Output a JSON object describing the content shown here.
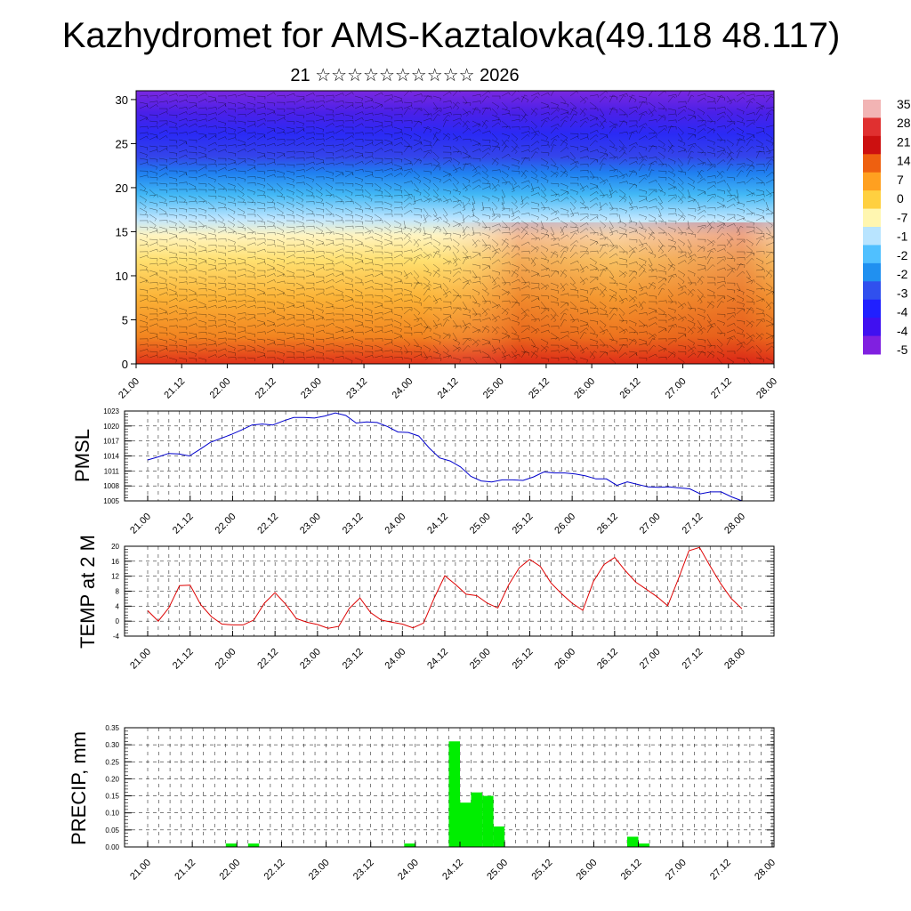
{
  "header": {
    "title": "Kazhydromet for AMS-Kaztalovka(49.118 48.117)",
    "subtitle": "21 ☆☆☆☆☆☆☆☆☆☆ 2026"
  },
  "colors": {
    "pmsl_line": "#0000cc",
    "temp_line": "#dd0000",
    "precip_bar": "#00ee00",
    "grid": "#000000"
  },
  "time_ticks": [
    "21.00",
    "21.12",
    "22.00",
    "22.12",
    "23.00",
    "23.12",
    "24.00",
    "24.12",
    "25.00",
    "25.12",
    "26.00",
    "26.12",
    "27.00",
    "27.12",
    "28.00"
  ],
  "chart_data": [
    {
      "type": "heatmap",
      "id": "cross-section",
      "title": "",
      "x": [
        "21.00",
        "21.12",
        "22.00",
        "22.12",
        "23.00",
        "23.12",
        "24.00",
        "24.12",
        "25.00",
        "25.12",
        "26.00",
        "26.12",
        "27.00",
        "27.12",
        "28.00"
      ],
      "yticks": [
        "0",
        "5",
        "10",
        "15",
        "20",
        "25",
        "30"
      ],
      "ylim": [
        0,
        31
      ],
      "colorbar_labels": [
        "35",
        "28",
        "21",
        "14",
        "7",
        "0",
        "-7",
        "-1",
        "-2",
        "-2",
        "-3",
        "-4",
        "-4",
        "-5"
      ],
      "colorbar_colors": [
        "#f2b4b4",
        "#e03030",
        "#cc1010",
        "#ee6010",
        "#ffa020",
        "#ffd040",
        "#fff6b0",
        "#b8e4ff",
        "#50c0ff",
        "#2090f0",
        "#3050ee",
        "#2020ff",
        "#4010f0",
        "#8020e0"
      ]
    },
    {
      "type": "line",
      "id": "pmsl",
      "ylabel": "PMSL",
      "ylim": [
        1005,
        1023
      ],
      "yticks": [
        "1005",
        "1008",
        "1011",
        "1014",
        "1017",
        "1020",
        "1023"
      ],
      "values": [
        1013.2,
        1013.8,
        1014.5,
        1014.4,
        1014,
        1015.3,
        1016.7,
        1017.5,
        1018.3,
        1019.2,
        1020.2,
        1020.4,
        1020.2,
        1021,
        1021.7,
        1021.7,
        1021.6,
        1022,
        1022.6,
        1022.1,
        1020.6,
        1020.8,
        1020.7,
        1019.9,
        1018.8,
        1018.7,
        1018,
        1015.6,
        1013.6,
        1013,
        1011.8,
        1009.9,
        1009,
        1008.8,
        1009.2,
        1009.2,
        1009.1,
        1009.8,
        1010.8,
        1010.6,
        1010.6,
        1010.4,
        1010,
        1009.4,
        1009.4,
        1008.1,
        1008.8,
        1008.3,
        1007.8,
        1007.7,
        1007.8,
        1007.6,
        1007.4,
        1006.4,
        1006.8,
        1006.8,
        1005.8,
        1005
      ]
    },
    {
      "type": "line",
      "id": "temp-2m",
      "ylabel": "TEMP at 2 M",
      "ylim": [
        -4,
        20
      ],
      "yticks": [
        "-4",
        "0",
        "4",
        "8",
        "12",
        "16",
        "20"
      ],
      "values": [
        2.8,
        0,
        3.6,
        9.5,
        9.6,
        4.4,
        1.2,
        -0.8,
        -1,
        -1,
        0.3,
        4.8,
        7.6,
        4.5,
        0.7,
        -0.3,
        -0.9,
        -1.9,
        -1.4,
        3.4,
        6.2,
        2.3,
        0.3,
        -0.3,
        -0.8,
        -1.8,
        -0.5,
        6.2,
        12.1,
        9.8,
        7.2,
        6.8,
        4.8,
        3.5,
        9.6,
        14.2,
        16.5,
        14.6,
        10.2,
        7.3,
        4.8,
        2.9,
        10.6,
        15.1,
        17,
        13.5,
        10.4,
        8.5,
        6.5,
        4.1,
        11.2,
        18.8,
        19.7,
        14.7,
        10,
        6,
        3.3
      ]
    },
    {
      "type": "bar",
      "id": "precip",
      "ylabel": "PRECIP, mm",
      "ylim": [
        0,
        0.35
      ],
      "yticks": [
        "0.00",
        "0.05",
        "0.10",
        "0.15",
        "0.20",
        "0.25",
        "0.30",
        "0.35"
      ],
      "bars": [
        {
          "t": 7.5,
          "v": 0.01
        },
        {
          "t": 9.5,
          "v": 0.01
        },
        {
          "t": 23.5,
          "v": 0.01
        },
        {
          "t": 27.5,
          "v": 0.31
        },
        {
          "t": 28.5,
          "v": 0.13
        },
        {
          "t": 29.5,
          "v": 0.16
        },
        {
          "t": 30.5,
          "v": 0.15
        },
        {
          "t": 31.5,
          "v": 0.06
        },
        {
          "t": 43.5,
          "v": 0.03
        },
        {
          "t": 44.5,
          "v": 0.01
        }
      ]
    }
  ]
}
